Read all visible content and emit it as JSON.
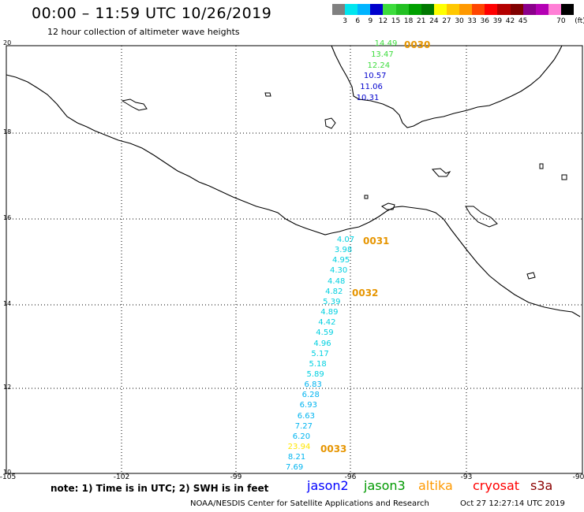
{
  "header": {
    "title": "00:00 – 11:59 UTC 10/26/2019",
    "subtitle": "12 hour collection of altimeter wave heights"
  },
  "legend": {
    "unit": "(ft)",
    "colors": [
      "#808080",
      "#00e5ee",
      "#00b4ff",
      "#0000cd",
      "#3cdc3c",
      "#22c022",
      "#00a000",
      "#007800",
      "#ffff00",
      "#ffc800",
      "#ff9900",
      "#ff4500",
      "#ff0000",
      "#b40000",
      "#800000",
      "#8b008b",
      "#b400b4",
      "#ff7fd6",
      "#000000"
    ],
    "labels": [
      "3",
      "6",
      "9",
      "12",
      "15",
      "18",
      "21",
      "24",
      "27",
      "30",
      "33",
      "36",
      "39",
      "42",
      "45",
      "70"
    ]
  },
  "axes": {
    "lat_labels": [
      "20",
      "18",
      "16",
      "14",
      "12",
      "10"
    ],
    "lon_labels": [
      "-105",
      "-102",
      "-99",
      "-96",
      "-93",
      "-90"
    ]
  },
  "tracks": [
    {
      "satellite": "jason3",
      "time_label": "0030",
      "points": [
        {
          "value": "14.49",
          "color": "#3cdc3c"
        },
        {
          "value": "13.47",
          "color": "#3cdc3c"
        },
        {
          "value": "12.24",
          "color": "#3cdc3c"
        },
        {
          "value": "10.57",
          "color": "#0000cd"
        },
        {
          "value": "11.06",
          "color": "#0000cd"
        },
        {
          "value": "10.31",
          "color": "#0000cd"
        }
      ]
    },
    {
      "satellite": "jason3",
      "time_labels": [
        "0031",
        "0032",
        "0033"
      ],
      "points": [
        {
          "value": "4.07",
          "color": "#00d0e0"
        },
        {
          "value": "3.98",
          "color": "#00d0e0"
        },
        {
          "value": "4.95",
          "color": "#00d0e0"
        },
        {
          "value": "4.30",
          "color": "#00d0e0"
        },
        {
          "value": "4.48",
          "color": "#00d0e0"
        },
        {
          "value": "4.82",
          "color": "#00d0e0"
        },
        {
          "value": "5.39",
          "color": "#00d0e0"
        },
        {
          "value": "4.89",
          "color": "#00d0e0"
        },
        {
          "value": "4.42",
          "color": "#00d0e0"
        },
        {
          "value": "4.59",
          "color": "#00d0e0"
        },
        {
          "value": "4.96",
          "color": "#00d0e0"
        },
        {
          "value": "5.17",
          "color": "#00d0e0"
        },
        {
          "value": "5.18",
          "color": "#00d0e0"
        },
        {
          "value": "5.89",
          "color": "#00d0e0"
        },
        {
          "value": "6.83",
          "color": "#00b4f0"
        },
        {
          "value": "6.28",
          "color": "#00b4f0"
        },
        {
          "value": "6.93",
          "color": "#00b4f0"
        },
        {
          "value": "6.63",
          "color": "#00b4f0"
        },
        {
          "value": "7.27",
          "color": "#00b4f0"
        },
        {
          "value": "6.20",
          "color": "#00b4f0"
        },
        {
          "value": "23.94",
          "color": "#ffe600"
        },
        {
          "value": "8.21",
          "color": "#00b4f0"
        },
        {
          "value": "7.69",
          "color": "#00b4f0"
        }
      ]
    }
  ],
  "footer": {
    "note": "note: 1) Time is in UTC; 2) SWH is in feet",
    "satellites": [
      {
        "name": "jason2",
        "color": "#0000ff"
      },
      {
        "name": "jason3",
        "color": "#009900"
      },
      {
        "name": "altika",
        "color": "#ff9900"
      },
      {
        "name": "cryosat",
        "color": "#ff0000"
      },
      {
        "name": "s3a",
        "color": "#8b0000"
      }
    ],
    "credit": "NOAA/NESDIS Center for Satellite Applications and Research",
    "timestamp": "Oct 27 12:27:14 UTC 2019"
  }
}
